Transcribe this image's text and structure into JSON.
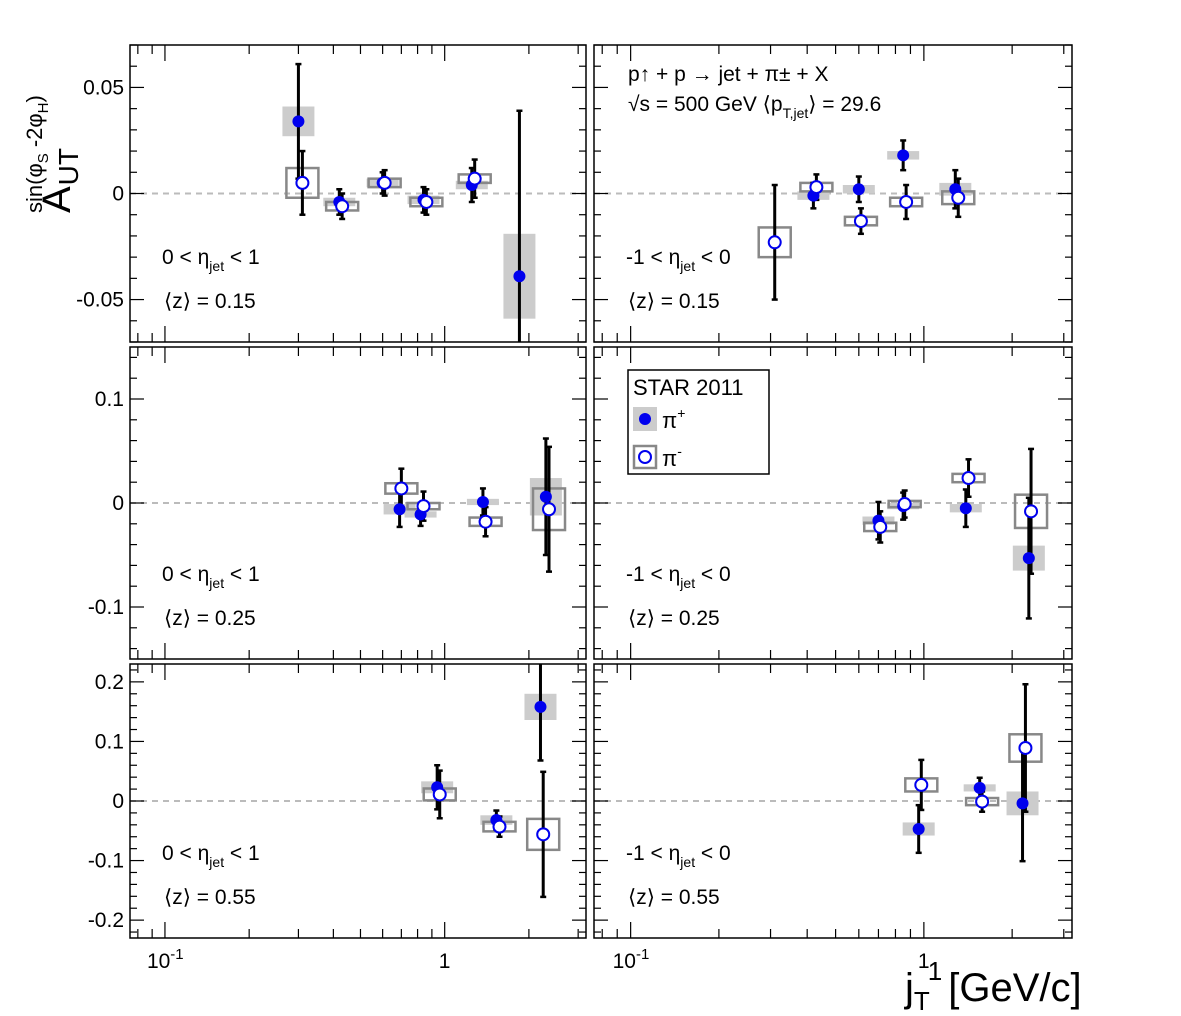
{
  "chart_data": {
    "type": "scatter",
    "layout": "3 rows x 2 columns",
    "x_scale": "log",
    "xlim": [
      0.075,
      3.2
    ],
    "x_tick_labels": [
      "10^-1",
      "1"
    ],
    "xlabel": {
      "main": "j",
      "sub": "T",
      "sup": "1",
      "unit": "[GeV/c]"
    },
    "ylabel": {
      "main": "A",
      "sub": "UT",
      "sup": "sin(φ",
      "sup_s": "S",
      "sup_mid": " -2φ",
      "sup_h": "H",
      "sup_end": ")"
    },
    "reaction": {
      "line1": "p↑ + p → jet + π± + X",
      "line2": "√s = 500 GeV   ⟨p",
      "line2_sub": "T,jet",
      "line2_end": "⟩ = 29.6"
    },
    "legend": {
      "title": "STAR 2011",
      "entries": [
        {
          "name": "π",
          "sup": "+"
        },
        {
          "name": "π",
          "sup": "-"
        }
      ]
    },
    "series_style": {
      "pi_plus": {
        "marker": "filled-circle",
        "color": "#0000ee",
        "sys_box": "#cccccc"
      },
      "pi_minus": {
        "marker": "open-circle",
        "color": "#0000ee",
        "sys_box": "#888888"
      }
    },
    "rows": [
      {
        "z_label": "⟨z⟩ = 0.15",
        "ylim": [
          -0.07,
          0.07
        ],
        "yticks": [
          -0.05,
          0,
          0.05
        ],
        "ytick_labels": [
          "-0.05",
          "0",
          "0.05"
        ]
      },
      {
        "z_label": "⟨z⟩ = 0.25",
        "ylim": [
          -0.15,
          0.15
        ],
        "yticks": [
          -0.1,
          0,
          0.1
        ],
        "ytick_labels": [
          "-0.1",
          "0",
          "0.1"
        ]
      },
      {
        "z_label": "⟨z⟩ = 0.55",
        "ylim": [
          -0.23,
          0.23
        ],
        "yticks": [
          -0.2,
          -0.1,
          0,
          0.1,
          0.2
        ],
        "ytick_labels": [
          "-0.2",
          "-0.1",
          "0",
          "0.1",
          "0.2"
        ]
      }
    ],
    "eta_labels": [
      {
        "pre": "0 < η",
        "sub": "jet",
        "post": " < 1"
      },
      {
        "pre": "-1 < η",
        "sub": "jet",
        "post": " < 0"
      }
    ],
    "panels": [
      {
        "row": 0,
        "col": 0,
        "pi_plus": [
          {
            "x": 0.3,
            "y": 0.034,
            "stat": 0.027,
            "sys": 0.007
          },
          {
            "x": 0.42,
            "y": -0.004,
            "stat": 0.006,
            "sys": 0.002
          },
          {
            "x": 0.6,
            "y": 0.005,
            "stat": 0.005,
            "sys": 0.002
          },
          {
            "x": 0.84,
            "y": -0.003,
            "stat": 0.006,
            "sys": 0.002
          },
          {
            "x": 1.25,
            "y": 0.004,
            "stat": 0.008,
            "sys": 0.002
          },
          {
            "x": 1.85,
            "y": -0.039,
            "stat": 0.078,
            "sys": 0.02
          }
        ],
        "pi_minus": [
          {
            "x": 0.31,
            "y": 0.005,
            "stat": 0.015,
            "sys": 0.007
          },
          {
            "x": 0.43,
            "y": -0.006,
            "stat": 0.006,
            "sys": 0.002
          },
          {
            "x": 0.61,
            "y": 0.005,
            "stat": 0.006,
            "sys": 0.002
          },
          {
            "x": 0.86,
            "y": -0.004,
            "stat": 0.006,
            "sys": 0.002
          },
          {
            "x": 1.28,
            "y": 0.007,
            "stat": 0.009,
            "sys": 0.002
          }
        ]
      },
      {
        "row": 0,
        "col": 1,
        "pi_plus": [
          {
            "x": 0.42,
            "y": -0.001,
            "stat": 0.006,
            "sys": 0.002
          },
          {
            "x": 0.6,
            "y": 0.002,
            "stat": 0.006,
            "sys": 0.002
          },
          {
            "x": 0.85,
            "y": 0.018,
            "stat": 0.007,
            "sys": 0.002
          },
          {
            "x": 1.28,
            "y": 0.002,
            "stat": 0.009,
            "sys": 0.003
          }
        ],
        "pi_minus": [
          {
            "x": 0.31,
            "y": -0.023,
            "stat": 0.027,
            "sys": 0.007
          },
          {
            "x": 0.43,
            "y": 0.003,
            "stat": 0.006,
            "sys": 0.002
          },
          {
            "x": 0.61,
            "y": -0.013,
            "stat": 0.006,
            "sys": 0.002
          },
          {
            "x": 0.87,
            "y": -0.004,
            "stat": 0.008,
            "sys": 0.002
          },
          {
            "x": 1.31,
            "y": -0.002,
            "stat": 0.009,
            "sys": 0.003
          }
        ]
      },
      {
        "row": 1,
        "col": 0,
        "pi_plus": [
          {
            "x": 0.69,
            "y": -0.006,
            "stat": 0.017,
            "sys": 0.005
          },
          {
            "x": 0.82,
            "y": -0.011,
            "stat": 0.011,
            "sys": 0.003
          },
          {
            "x": 1.37,
            "y": 0.001,
            "stat": 0.013,
            "sys": 0.003
          },
          {
            "x": 2.3,
            "y": 0.006,
            "stat": 0.056,
            "sys": 0.018
          }
        ],
        "pi_minus": [
          {
            "x": 0.7,
            "y": 0.014,
            "stat": 0.019,
            "sys": 0.005
          },
          {
            "x": 0.84,
            "y": -0.003,
            "stat": 0.014,
            "sys": 0.003
          },
          {
            "x": 1.4,
            "y": -0.018,
            "stat": 0.014,
            "sys": 0.004
          },
          {
            "x": 2.36,
            "y": -0.006,
            "stat": 0.06,
            "sys": 0.02
          }
        ]
      },
      {
        "row": 1,
        "col": 1,
        "pi_plus": [
          {
            "x": 0.7,
            "y": -0.017,
            "stat": 0.018,
            "sys": 0.004
          },
          {
            "x": 0.85,
            "y": -0.003,
            "stat": 0.013,
            "sys": 0.003
          },
          {
            "x": 1.39,
            "y": -0.005,
            "stat": 0.018,
            "sys": 0.004
          },
          {
            "x": 2.28,
            "y": -0.053,
            "stat": 0.058,
            "sys": 0.012
          }
        ],
        "pi_minus": [
          {
            "x": 0.71,
            "y": -0.023,
            "stat": 0.015,
            "sys": 0.004
          },
          {
            "x": 0.86,
            "y": -0.001,
            "stat": 0.013,
            "sys": 0.003
          },
          {
            "x": 1.42,
            "y": 0.024,
            "stat": 0.018,
            "sys": 0.004
          },
          {
            "x": 2.32,
            "y": -0.008,
            "stat": 0.06,
            "sys": 0.016
          }
        ]
      },
      {
        "row": 2,
        "col": 0,
        "pi_plus": [
          {
            "x": 0.94,
            "y": 0.023,
            "stat": 0.037,
            "sys": 0.01
          },
          {
            "x": 1.53,
            "y": -0.032,
            "stat": 0.016,
            "sys": 0.008
          },
          {
            "x": 2.2,
            "y": 0.158,
            "stat": 0.09,
            "sys": 0.022
          }
        ],
        "pi_minus": [
          {
            "x": 0.96,
            "y": 0.011,
            "stat": 0.04,
            "sys": 0.01
          },
          {
            "x": 1.57,
            "y": -0.043,
            "stat": 0.017,
            "sys": 0.008
          },
          {
            "x": 2.25,
            "y": -0.056,
            "stat": 0.105,
            "sys": 0.026
          }
        ]
      },
      {
        "row": 2,
        "col": 1,
        "pi_plus": [
          {
            "x": 0.96,
            "y": -0.047,
            "stat": 0.04,
            "sys": 0.011
          },
          {
            "x": 1.55,
            "y": 0.022,
            "stat": 0.017,
            "sys": 0.006
          },
          {
            "x": 2.17,
            "y": -0.004,
            "stat": 0.097,
            "sys": 0.02
          }
        ],
        "pi_minus": [
          {
            "x": 0.98,
            "y": 0.027,
            "stat": 0.042,
            "sys": 0.011
          },
          {
            "x": 1.58,
            "y": -0.001,
            "stat": 0.017,
            "sys": 0.006
          },
          {
            "x": 2.22,
            "y": 0.089,
            "stat": 0.107,
            "sys": 0.023
          }
        ]
      }
    ]
  }
}
